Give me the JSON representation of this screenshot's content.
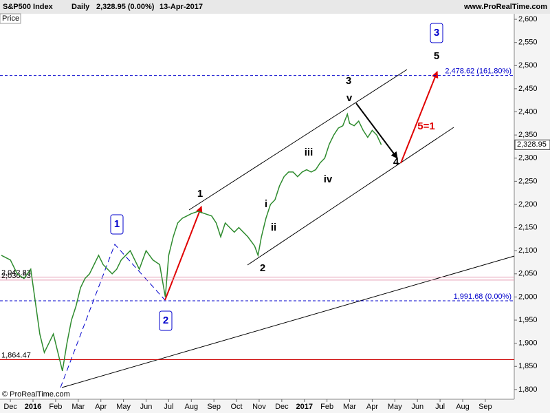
{
  "chart_data": {
    "type": "line",
    "header": {
      "symbol": "S&P500 Index",
      "period": "Daily",
      "quote": "2,328.95 (0.00%)",
      "date": "13-Apr-2017",
      "site": "www.ProRealTime.com"
    },
    "panel_label": "Price",
    "copyright": "© ProRealTime.com",
    "xlim": [
      -0.46,
      22.28
    ],
    "xticks": [
      {
        "value": 0,
        "label": "Dec"
      },
      {
        "value": 1,
        "label": "2016"
      },
      {
        "value": 2,
        "label": "Feb"
      },
      {
        "value": 3,
        "label": "Mar"
      },
      {
        "value": 4,
        "label": "Apr"
      },
      {
        "value": 5,
        "label": "May"
      },
      {
        "value": 6,
        "label": "Jun"
      },
      {
        "value": 7,
        "label": "Jul"
      },
      {
        "value": 8,
        "label": "Aug"
      },
      {
        "value": 9,
        "label": "Sep"
      },
      {
        "value": 10,
        "label": "Oct"
      },
      {
        "value": 11,
        "label": "Nov"
      },
      {
        "value": 12,
        "label": "Dec"
      },
      {
        "value": 13,
        "label": "2017"
      },
      {
        "value": 14,
        "label": "Feb"
      },
      {
        "value": 15,
        "label": "Mar"
      },
      {
        "value": 16,
        "label": "Apr"
      },
      {
        "value": 17,
        "label": "May"
      },
      {
        "value": 18,
        "label": "Jun"
      },
      {
        "value": 19,
        "label": "Jul"
      },
      {
        "value": 20,
        "label": "Aug"
      },
      {
        "value": 21,
        "label": "Sep"
      }
    ],
    "ylim": [
      1779,
      2612
    ],
    "yticks": [
      {
        "value": 1800,
        "label": "1,800"
      },
      {
        "value": 1850,
        "label": "1,850"
      },
      {
        "value": 1900,
        "label": "1,900"
      },
      {
        "value": 1950,
        "label": "1,950"
      },
      {
        "value": 2000,
        "label": "2,000"
      },
      {
        "value": 2050,
        "label": "2,050"
      },
      {
        "value": 2100,
        "label": "2,100"
      },
      {
        "value": 2150,
        "label": "2,150"
      },
      {
        "value": 2200,
        "label": "2,200"
      },
      {
        "value": 2250,
        "label": "2,250"
      },
      {
        "value": 2300,
        "label": "2,300"
      },
      {
        "value": 2350,
        "label": "2,350"
      },
      {
        "value": 2400,
        "label": "2,400"
      },
      {
        "value": 2450,
        "label": "2,450"
      },
      {
        "value": 2500,
        "label": "2,500"
      },
      {
        "value": 2550,
        "label": "2,550"
      },
      {
        "value": 2600,
        "label": "2,600"
      }
    ],
    "series": [
      {
        "name": "S&P500 Index",
        "color": "#2e8b2e",
        "x": [
          -0.4,
          0,
          0.3,
          0.6,
          0.9,
          1.1,
          1.3,
          1.5,
          1.7,
          1.9,
          2.1,
          2.3,
          2.5,
          2.7,
          2.9,
          3.1,
          3.3,
          3.5,
          3.7,
          3.9,
          4.1,
          4.3,
          4.5,
          4.7,
          4.9,
          5.1,
          5.3,
          5.5,
          5.7,
          6.0,
          6.3,
          6.6,
          6.85,
          7.0,
          7.2,
          7.4,
          7.6,
          7.8,
          8.0,
          8.3,
          8.6,
          8.9,
          9.1,
          9.3,
          9.5,
          9.7,
          9.9,
          10.1,
          10.3,
          10.5,
          10.8,
          10.95,
          11.1,
          11.3,
          11.5,
          11.7,
          11.9,
          12.1,
          12.3,
          12.5,
          12.7,
          12.9,
          13.1,
          13.3,
          13.5,
          13.7,
          13.9,
          14.1,
          14.3,
          14.5,
          14.7,
          14.9,
          15.0,
          15.2,
          15.4,
          15.6,
          15.8,
          16.0,
          16.2,
          16.4
        ],
        "values": [
          2090,
          2080,
          2050,
          2040,
          2060,
          1990,
          1920,
          1880,
          1900,
          1920,
          1880,
          1840,
          1900,
          1950,
          1980,
          2020,
          2040,
          2050,
          2070,
          2090,
          2070,
          2060,
          2050,
          2060,
          2080,
          2090,
          2100,
          2080,
          2060,
          2100,
          2080,
          2070,
          2000,
          2090,
          2130,
          2160,
          2170,
          2175,
          2180,
          2185,
          2180,
          2175,
          2160,
          2130,
          2160,
          2150,
          2140,
          2150,
          2140,
          2130,
          2110,
          2090,
          2130,
          2170,
          2200,
          2210,
          2240,
          2260,
          2270,
          2270,
          2260,
          2270,
          2275,
          2270,
          2275,
          2290,
          2300,
          2330,
          2350,
          2365,
          2370,
          2395,
          2375,
          2370,
          2380,
          2360,
          2345,
          2360,
          2350,
          2329
        ]
      }
    ],
    "last_price": {
      "value": 2328.95,
      "label": "2,328.95"
    },
    "levels": [
      {
        "value": 2478.62,
        "label": "2,478.62 (161.80%)",
        "color": "#0000cc",
        "style": "dashed",
        "side": "right"
      },
      {
        "value": 1991.68,
        "label": "1,991.68 (0.00%)",
        "color": "#0000cc",
        "style": "dashed",
        "side": "right"
      },
      {
        "value": 1864.47,
        "label": "1,864.47",
        "color": "#cc0000",
        "style": "solid",
        "side": "left"
      },
      {
        "value": 2042.83,
        "label": "2,042.83",
        "color": "#e59ab0",
        "style": "solid",
        "side": "left"
      },
      {
        "value": 2036.53,
        "label": "2,036.53",
        "color": "#e59ab0",
        "style": "solid",
        "side": "left"
      }
    ],
    "annotations": [
      "1",
      "2",
      "3",
      "4",
      "5",
      "i",
      "ii",
      "iii",
      "iv",
      "v",
      "5=1",
      "1",
      "2",
      "3"
    ]
  }
}
